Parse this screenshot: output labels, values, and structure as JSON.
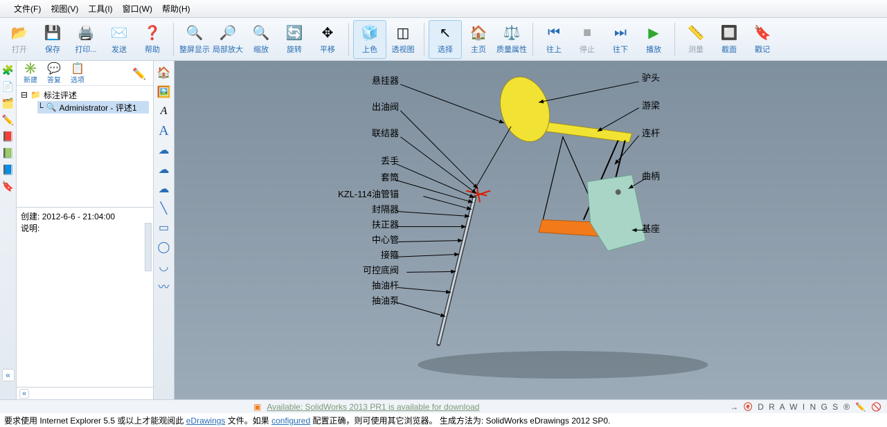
{
  "menu": {
    "file": "文件(F)",
    "view": "视图(V)",
    "tools": "工具(I)",
    "window": "窗口(W)",
    "help": "帮助(H)"
  },
  "toolbar": {
    "open": "打开",
    "save": "保存",
    "print": "打印...",
    "send": "发送",
    "help": "帮助",
    "fullscreen": "整屏显示",
    "zoomarea": "局部放大",
    "zoom": "缩放",
    "rotate": "旋转",
    "pan": "平移",
    "shade": "上色",
    "perspective": "透视图",
    "select": "选择",
    "home": "主页",
    "massprop": "质量属性",
    "prev": "往上",
    "stop": "停止",
    "next": "往下",
    "play": "播放",
    "measure": "测量",
    "section": "截面",
    "stamp": "戳记"
  },
  "panel_tb": {
    "new": "新建",
    "reply": "答复",
    "options": "选项"
  },
  "tree": {
    "root": "标注评述",
    "child": "Administrator - 评述1"
  },
  "info": {
    "created_label": "创建:",
    "created_value": "2012-6-6 - 21:04:00",
    "desc_label": "说明:"
  },
  "annotations_left": [
    "悬挂器",
    "出油阀",
    "联结器",
    "丢手",
    "套筒",
    "KZL-114油管锚",
    "封隔器",
    "扶正器",
    "中心管",
    "接箍",
    "可控底阀",
    "抽油杆",
    "抽油泵"
  ],
  "annotations_right": [
    "驴头",
    "游梁",
    "连杆",
    "曲柄",
    "基座"
  ],
  "status": {
    "available": "Available: SolidWorks 2013 PR1 is available for download",
    "brand_prefix": "→",
    "brand": "D R A W I N G S",
    "brand_reg": "®"
  },
  "footer": {
    "pre": "要求使用  Internet Explorer 5.5 或以上才能观阅此 ",
    "link1": "eDrawings",
    "mid": " 文件。如果 ",
    "link2": "configured",
    "post": " 配置正确，则可使用其它浏览器。   生成方法为: SolidWorks eDrawings 2012 SP0."
  },
  "colors": {
    "yellow": "#f2e233",
    "orange": "#f27a1a",
    "teal": "#a8d5c6",
    "red": "#d81e05",
    "grey": "#5a6166",
    "shadow": "#4e5a62"
  }
}
